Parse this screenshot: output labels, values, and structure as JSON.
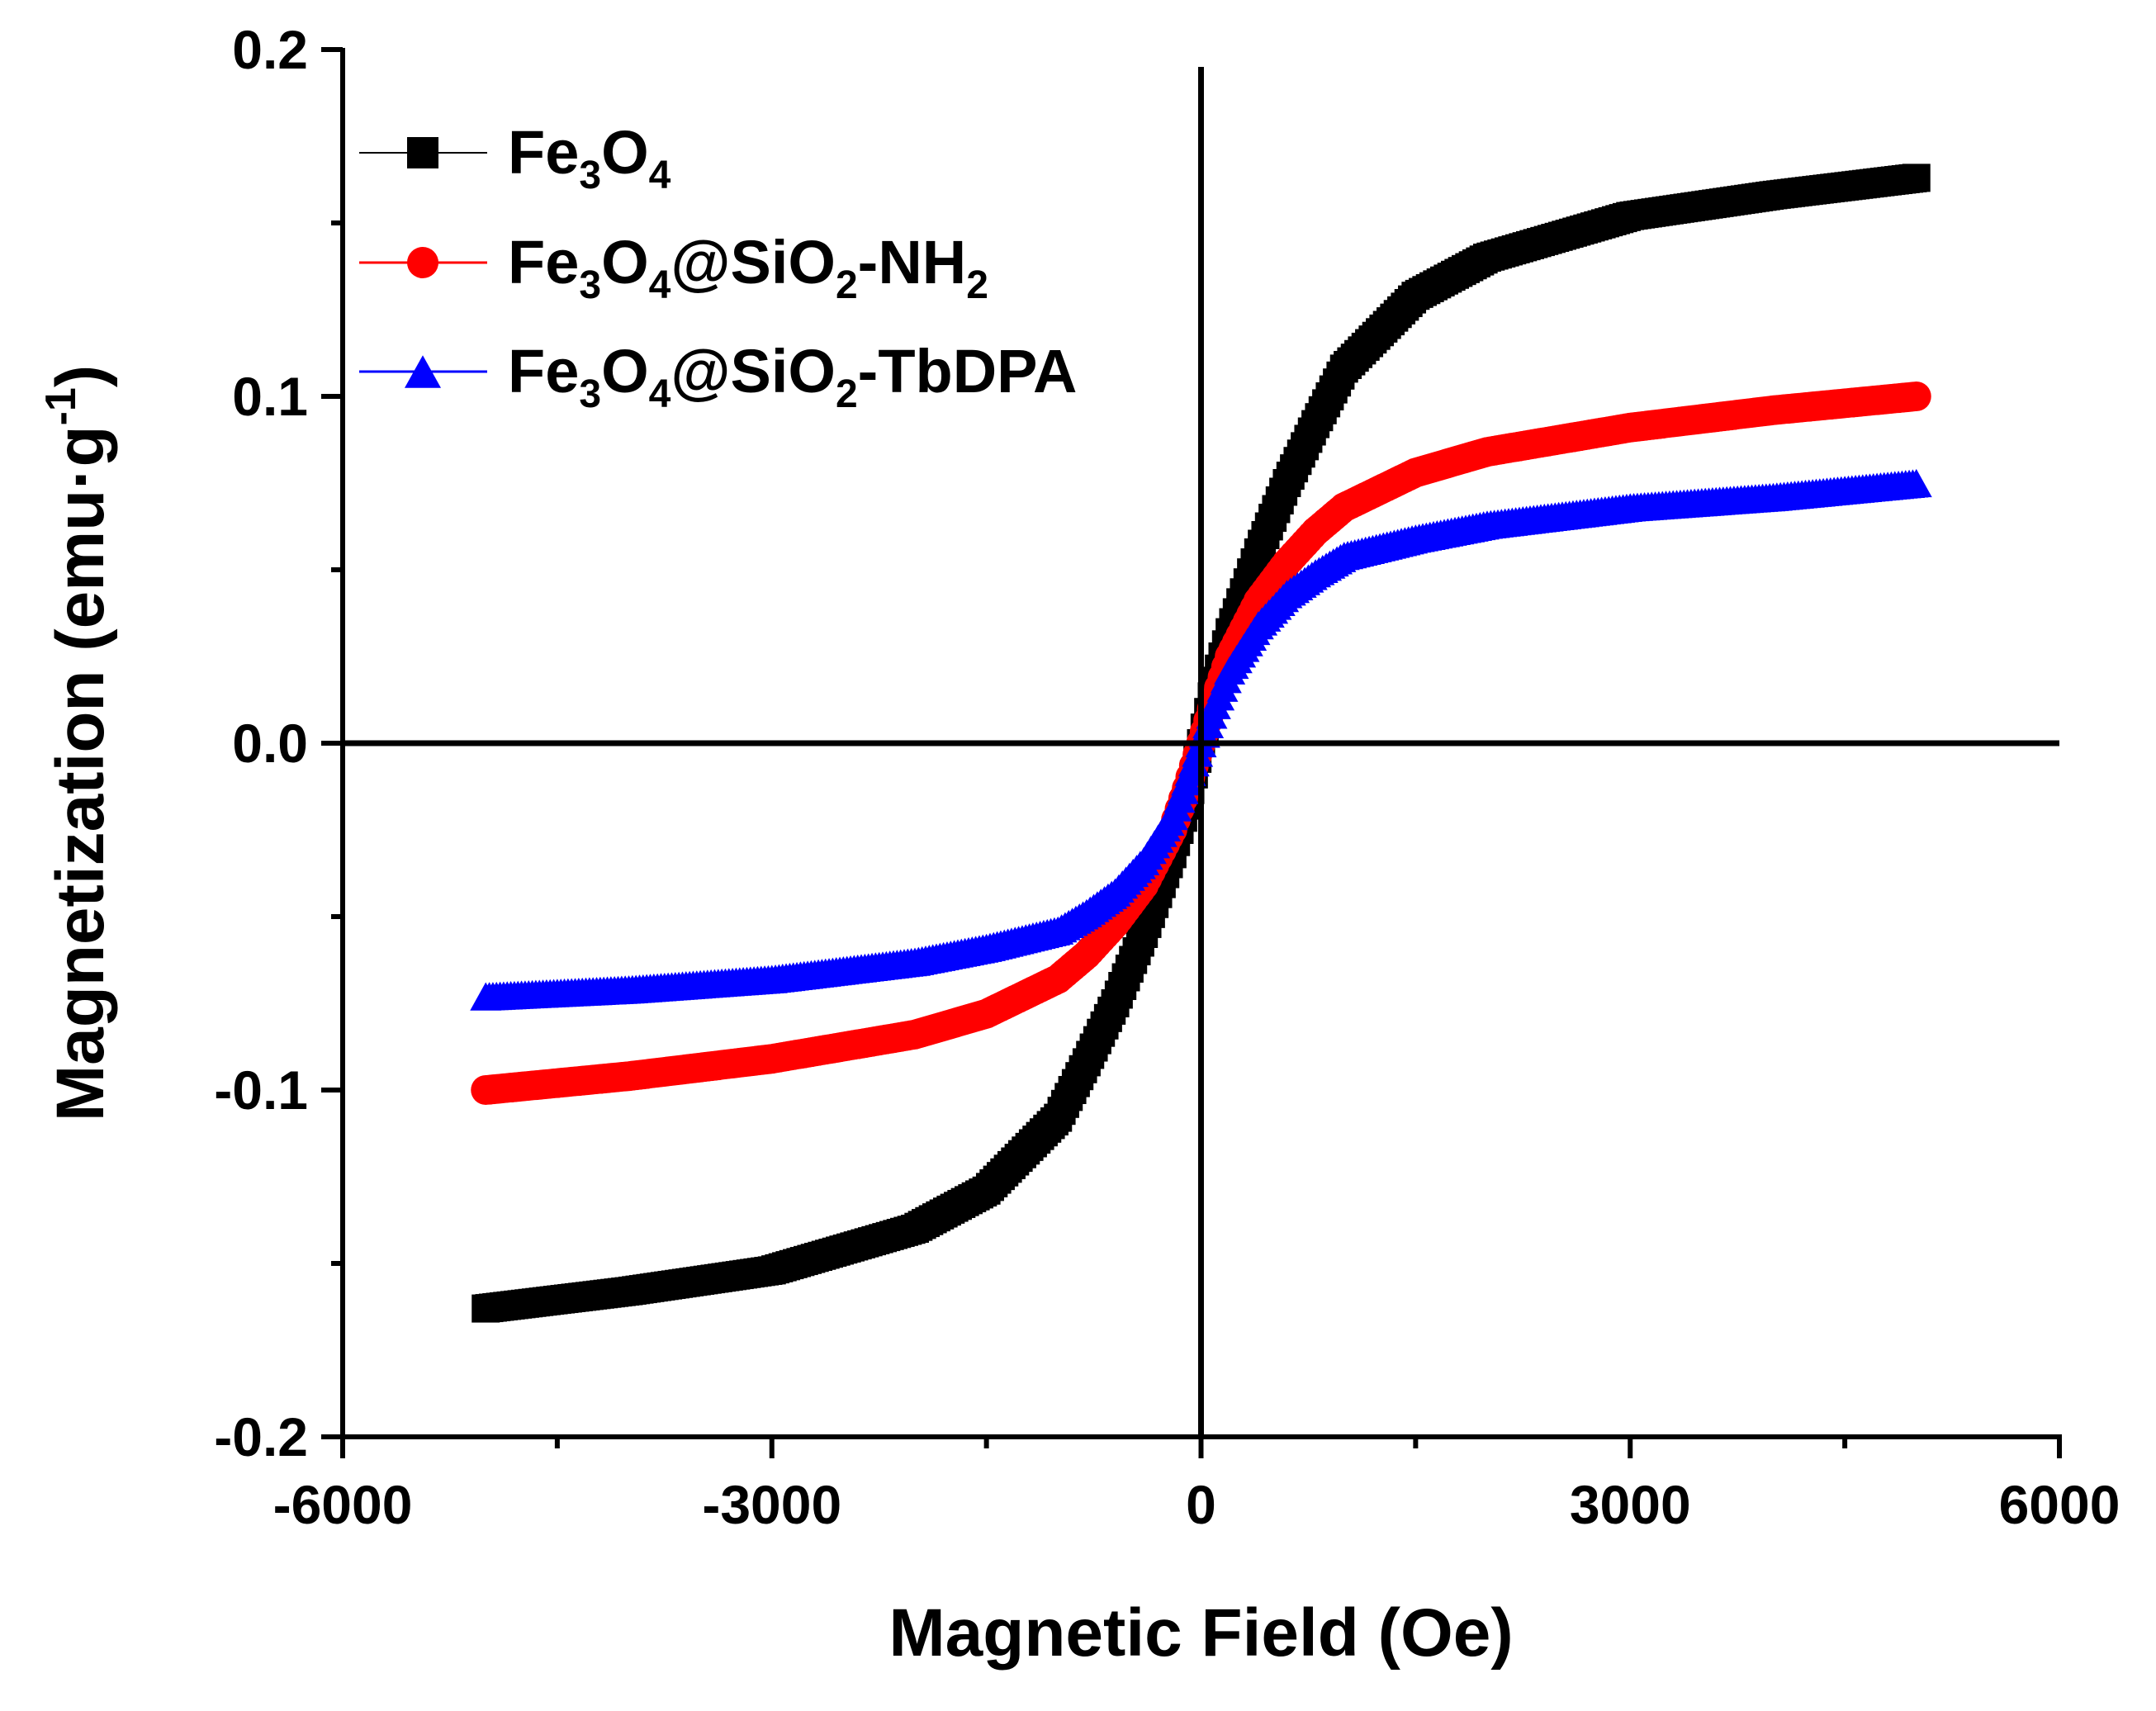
{
  "chart_data": {
    "type": "scatter",
    "title": "",
    "xlabel": "Magnetic Field (Oe)",
    "ylabel": "Magnetization (emu·g",
    "ylabel_sup": "-1",
    "ylabel_close": ")",
    "xlim": [
      -6000,
      6000
    ],
    "ylim": [
      -0.2,
      0.2
    ],
    "x_ticks": [
      -6000,
      -3000,
      0,
      3000,
      6000
    ],
    "x_tick_labels": [
      "-6000",
      "-3000",
      "0",
      "3000",
      "6000"
    ],
    "y_ticks": [
      -0.2,
      -0.1,
      0.0,
      0.1,
      0.2
    ],
    "y_tick_labels": [
      "-0.2",
      "-0.1",
      "0.0",
      "0.1",
      "0.2"
    ],
    "grid": false,
    "legend_position": "top-left",
    "series": [
      {
        "name": "Fe3O4",
        "legend_parts": [
          {
            "t": "Fe",
            "s": "n"
          },
          {
            "t": "3",
            "s": "sub"
          },
          {
            "t": "O",
            "s": "n"
          },
          {
            "t": "4",
            "s": "sub"
          }
        ],
        "color": "#000000",
        "marker": "square",
        "x": [
          -5000,
          -4000,
          -3000,
          -2000,
          -1500,
          -1000,
          -800,
          -600,
          -400,
          -200,
          -100,
          0,
          100,
          200,
          400,
          600,
          800,
          1000,
          1500,
          2000,
          3000,
          4000,
          5000
        ],
        "y": [
          -0.163,
          -0.158,
          -0.152,
          -0.14,
          -0.129,
          -0.108,
          -0.092,
          -0.075,
          -0.055,
          -0.032,
          -0.018,
          0.0,
          0.018,
          0.032,
          0.055,
          0.075,
          0.092,
          0.108,
          0.129,
          0.14,
          0.152,
          0.158,
          0.163
        ]
      },
      {
        "name": "Fe3O4@SiO2-NH2",
        "legend_parts": [
          {
            "t": "Fe",
            "s": "n"
          },
          {
            "t": "3",
            "s": "sub"
          },
          {
            "t": "O",
            "s": "n"
          },
          {
            "t": "4",
            "s": "sub"
          },
          {
            "t": "@SiO",
            "s": "n"
          },
          {
            "t": "2",
            "s": "sub"
          },
          {
            "t": "-NH",
            "s": "n"
          },
          {
            "t": "2",
            "s": "sub"
          }
        ],
        "color": "#ff0000",
        "marker": "circle",
        "x": [
          -5000,
          -4000,
          -3000,
          -2000,
          -1500,
          -1000,
          -800,
          -600,
          -400,
          -200,
          -100,
          0,
          100,
          200,
          400,
          600,
          800,
          1000,
          1500,
          2000,
          3000,
          4000,
          5000
        ],
        "y": [
          -0.1,
          -0.096,
          -0.091,
          -0.084,
          -0.078,
          -0.068,
          -0.061,
          -0.052,
          -0.041,
          -0.025,
          -0.013,
          0.0,
          0.013,
          0.025,
          0.041,
          0.052,
          0.061,
          0.068,
          0.078,
          0.084,
          0.091,
          0.096,
          0.1
        ]
      },
      {
        "name": "Fe3O4@SiO2-TbDPA",
        "legend_parts": [
          {
            "t": "Fe",
            "s": "n"
          },
          {
            "t": "3",
            "s": "sub"
          },
          {
            "t": "O",
            "s": "n"
          },
          {
            "t": "4",
            "s": "sub"
          },
          {
            "t": "@SiO",
            "s": "n"
          },
          {
            "t": "2",
            "s": "sub"
          },
          {
            "t": "-TbDPA",
            "s": "n"
          }
        ],
        "color": "#0000ff",
        "marker": "triangle",
        "x": [
          -5000,
          -4000,
          -3000,
          -2000,
          -1500,
          -1000,
          -800,
          -600,
          -400,
          -200,
          -100,
          0,
          100,
          200,
          400,
          600,
          800,
          1000,
          1500,
          2000,
          3000,
          4000,
          5000
        ],
        "y": [
          -0.073,
          -0.071,
          -0.068,
          -0.063,
          -0.059,
          -0.054,
          -0.049,
          -0.043,
          -0.034,
          -0.021,
          -0.011,
          0.0,
          0.011,
          0.021,
          0.034,
          0.043,
          0.049,
          0.054,
          0.059,
          0.063,
          0.068,
          0.071,
          0.075
        ]
      }
    ]
  }
}
